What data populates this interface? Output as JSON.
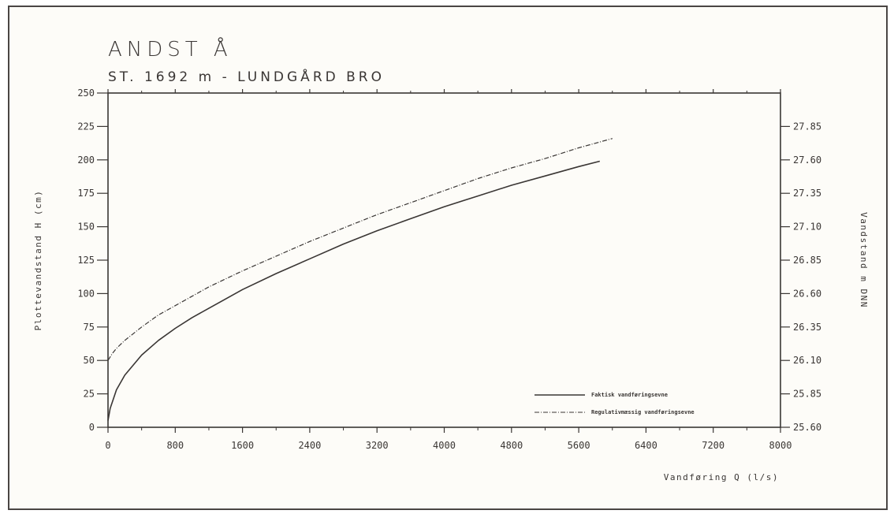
{
  "chart_data": {
    "type": "line",
    "title": "ANDST Å",
    "subtitle": "ST. 1692 m - LUNDGÅRD BRO",
    "xlabel": "Vandføring Q (l/s)",
    "ylabel": "Plottevandstand H (cm)",
    "y2label": "Vandstand m DNN",
    "xlim": [
      0,
      8000
    ],
    "ylim": [
      0,
      250
    ],
    "y2lim": [
      25.6,
      28.1
    ],
    "xticks": [
      "0",
      "800",
      "1600",
      "2400",
      "3200",
      "4000",
      "4800",
      "5600",
      "6400",
      "7200",
      "8000"
    ],
    "yticks": [
      "0",
      "25",
      "50",
      "75",
      "100",
      "125",
      "150",
      "175",
      "200",
      "225",
      "250"
    ],
    "y2ticks": [
      "25.60",
      "25.85",
      "26.10",
      "26.35",
      "26.60",
      "26.85",
      "27.10",
      "27.35",
      "27.60",
      "27.85"
    ],
    "grid": false,
    "legend_position": "bottom-right",
    "series": [
      {
        "name": "Faktisk vandføringsevne",
        "style": "solid",
        "x": [
          0,
          25,
          100,
          200,
          400,
          600,
          800,
          1000,
          1200,
          1600,
          2000,
          2400,
          2800,
          3200,
          3600,
          4000,
          4400,
          4800,
          5200,
          5600,
          5850
        ],
        "y": [
          5,
          14,
          28,
          39,
          54,
          65,
          74,
          82,
          89,
          103,
          115,
          126,
          137,
          147,
          156,
          165,
          173,
          181,
          188,
          195,
          199
        ]
      },
      {
        "name": "Regulativmæssig vandføringsevne",
        "style": "dash-dot",
        "x": [
          0,
          50,
          100,
          200,
          400,
          600,
          800,
          1000,
          1200,
          1600,
          2000,
          2400,
          2800,
          3200,
          3600,
          4000,
          4400,
          4800,
          5200,
          5600,
          6000
        ],
        "y": [
          50,
          55,
          59,
          65,
          75,
          84,
          91,
          98,
          105,
          117,
          128,
          139,
          149,
          159,
          168,
          177,
          186,
          194,
          201,
          209,
          216
        ]
      }
    ]
  }
}
